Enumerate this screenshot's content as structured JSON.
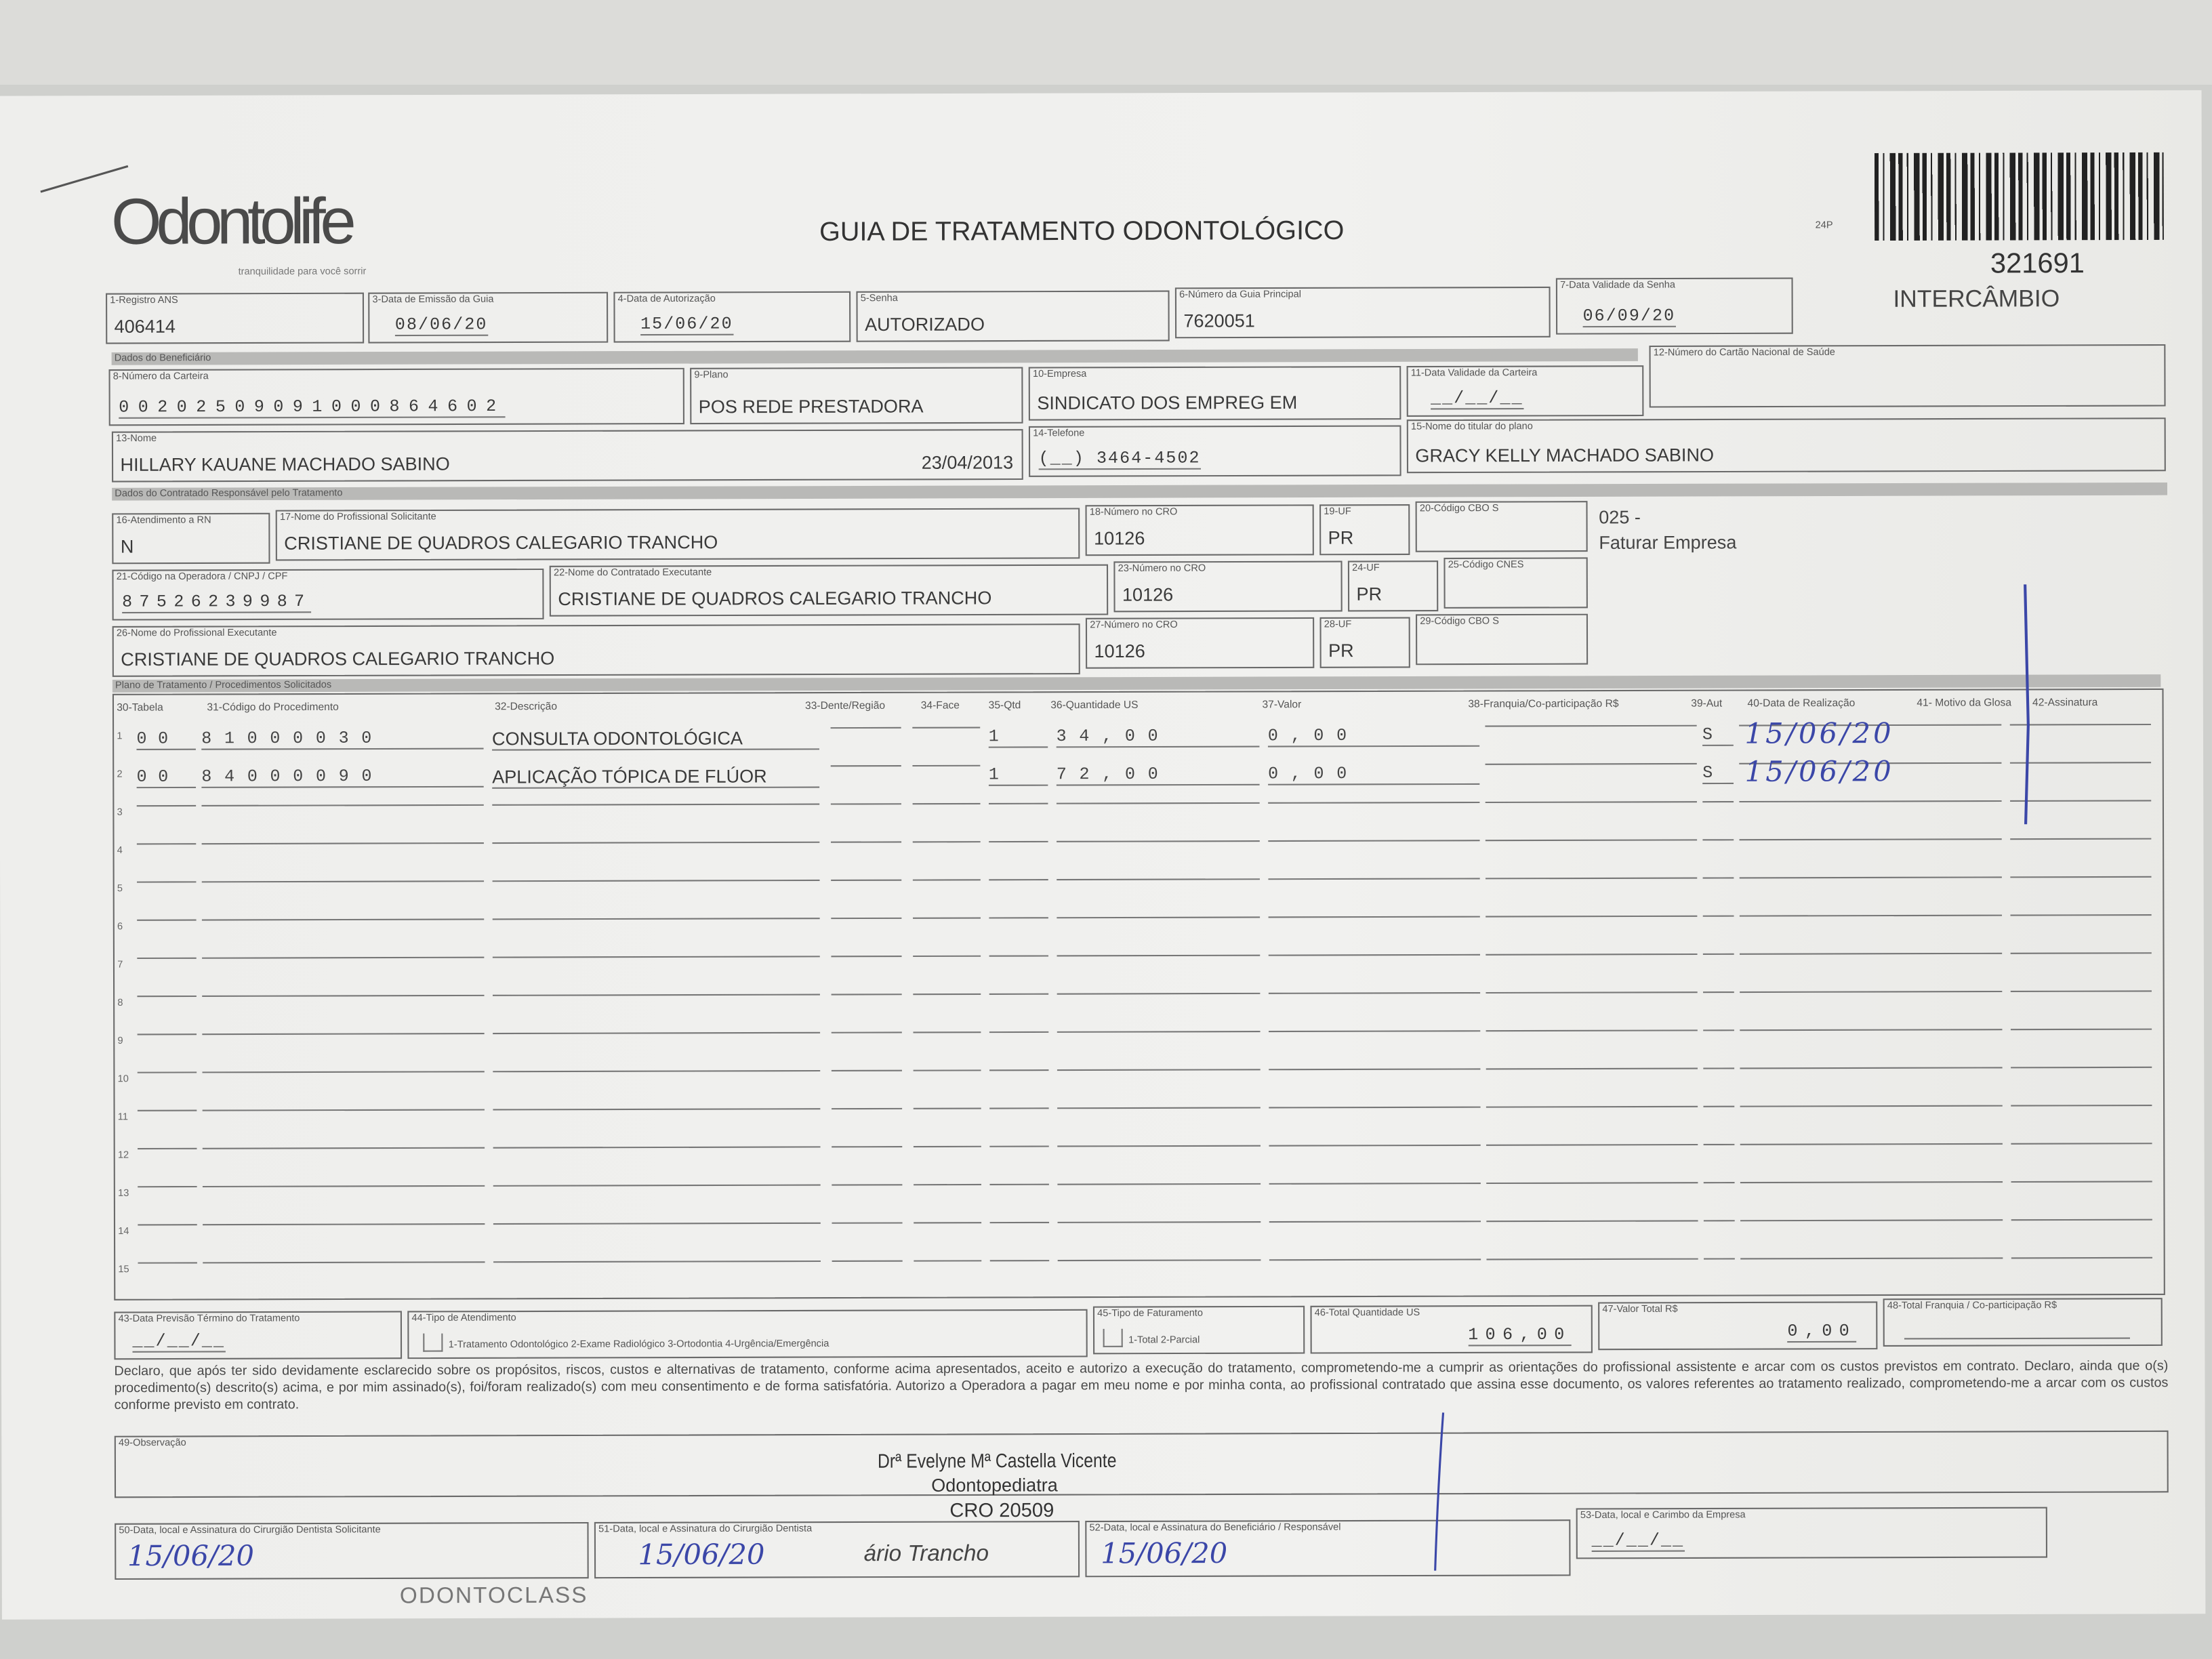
{
  "header": {
    "logo": "Odontolife",
    "tagline": "tranquilidade para você sorrir",
    "title": "GUIA DE TRATAMENTO ODONTOLÓGICO",
    "guide_number": "321691",
    "type": "INTERCÂMBIO",
    "small_mark": "24P"
  },
  "fields": {
    "registro_ans": {
      "label": "1-Registro ANS",
      "value": "406414"
    },
    "data_emissao": {
      "label": "3-Data de Emissão da Guia",
      "value": "08/06/20"
    },
    "data_autorizacao": {
      "label": "4-Data de Autorização",
      "value": "15/06/20"
    },
    "senha": {
      "label": "5-Senha",
      "value": "AUTORIZADO"
    },
    "guia_principal": {
      "label": "6-Número da Guia Principal",
      "value": "7620051"
    },
    "validade_senha": {
      "label": "7-Data Validade da Senha",
      "value": "06/09/20"
    },
    "carteira": {
      "label": "8-Número da Carteira",
      "value": "00202509091000864602"
    },
    "plano": {
      "label": "9-Plano",
      "value": "POS REDE PRESTADORA"
    },
    "empresa": {
      "label": "10-Empresa",
      "value": "SINDICATO DOS EMPREG EM"
    },
    "validade_carteira": {
      "label": "11-Data Validade da Carteira",
      "value": "__/__/__"
    },
    "cns": {
      "label": "12-Número do Cartão Nacional de Saúde",
      "value": ""
    },
    "nome": {
      "label": "13-Nome",
      "value": "HILLARY KAUANE MACHADO SABINO",
      "birth": "23/04/2013"
    },
    "telefone": {
      "label": "14-Telefone",
      "value": "(__) 3464-4502"
    },
    "titular": {
      "label": "15-Nome do titular do plano",
      "value": "GRACY KELLY MACHADO SABINO"
    },
    "atend_rn": {
      "label": "16-Atendimento a RN",
      "value": "N"
    },
    "prof_solicitante": {
      "label": "17-Nome do Profissional Solicitante",
      "value": "CRISTIANE DE QUADROS CALEGARIO TRANCHO"
    },
    "cro18": {
      "label": "18-Número no CRO",
      "value": "10126"
    },
    "uf19": {
      "label": "19-UF",
      "value": "PR"
    },
    "cbo20": {
      "label": "20-Código CBO S",
      "value": ""
    },
    "codigo_operadora": {
      "label": "21-Código na Operadora / CNPJ / CPF",
      "value": "87526239987"
    },
    "contratado": {
      "label": "22-Nome do Contratado Executante",
      "value": "CRISTIANE DE QUADROS CALEGARIO TRANCHO"
    },
    "cro23": {
      "label": "23-Número no CRO",
      "value": "10126"
    },
    "uf24": {
      "label": "24-UF",
      "value": "PR"
    },
    "cnes": {
      "label": "25-Código CNES",
      "value": ""
    },
    "prof_executante": {
      "label": "26-Nome do Profissional Executante",
      "value": "CRISTIANE DE QUADROS CALEGARIO TRANCHO"
    },
    "cro27": {
      "label": "27-Número no CRO",
      "value": "10126"
    },
    "uf28": {
      "label": "28-UF",
      "value": "PR"
    },
    "cbo29": {
      "label": "29-Código CBO S",
      "value": ""
    },
    "faturar": {
      "code": "025 -",
      "text": "Faturar Empresa"
    }
  },
  "sections": {
    "beneficiario": "Dados do Beneficiário",
    "contratado": "Dados do Contratado Responsável pelo Tratamento",
    "plano": "Plano de Tratamento / Procedimentos Solicitados"
  },
  "procedures": {
    "headers": [
      "30-Tabela",
      "31-Código do Procedimento",
      "32-Descrição",
      "33-Dente/Região",
      "34-Face",
      "35-Qtd",
      "36-Quantidade US",
      "37-Valor",
      "38-Franquia/Co-participação R$",
      "39-Aut",
      "40-Data de Realização",
      "41- Motivo da Glosa",
      "42-Assinatura"
    ],
    "rows": [
      {
        "n": "1",
        "tabela": "00",
        "codigo": "81000030",
        "descricao": "CONSULTA ODONTOLÓGICA",
        "qtd": "1",
        "us": "34,00",
        "valor": "0,00",
        "aut": "S",
        "data": "15/06/20"
      },
      {
        "n": "2",
        "tabela": "00",
        "codigo": "84000090",
        "descricao": "APLICAÇÃO TÓPICA DE FLÚOR",
        "qtd": "1",
        "us": "72,00",
        "valor": "0,00",
        "aut": "S",
        "data": "15/06/20"
      }
    ],
    "empty_rows": [
      "3",
      "4",
      "5",
      "6",
      "7",
      "8",
      "9",
      "10",
      "11",
      "12",
      "13",
      "14",
      "15"
    ]
  },
  "totals": {
    "previsao": {
      "label": "43-Data Previsão Término do Tratamento",
      "value": "__/__/__"
    },
    "tipo_atendimento": {
      "label": "44-Tipo de Atendimento",
      "options": "1-Tratamento Odontológico  2-Exame Radiológico  3-Ortodontia  4-Urgência/Emergência"
    },
    "tipo_faturamento": {
      "label": "45-Tipo de Faturamento",
      "options": "1-Total  2-Parcial"
    },
    "total_us": {
      "label": "46-Total Quantidade US",
      "value": "106,00"
    },
    "valor_total": {
      "label": "47-Valor Total R$",
      "value": "0,00"
    },
    "total_franquia": {
      "label": "48-Total Franquia / Co-participação R$",
      "value": ""
    }
  },
  "declaration": "Declaro, que após ter sido devidamente esclarecido sobre os propósitos, riscos, custos e alternativas de tratamento, conforme acima apresentados, aceito e autorizo a execução do tratamento, comprometendo-me a cumprir as orientações do profissional assistente e arcar com os custos previstos em contrato. Declaro, ainda que o(s) procedimento(s) descrito(s) acima, e por mim assinado(s), foi/foram realizado(s) com meu consentimento e de forma satisfatória. Autorizo a Operadora a pagar em meu nome e por minha conta, ao profissional contratado que assina esse documento, os valores referentes ao tratamento realizado, comprometendo-me a arcar com os custos conforme previsto em contrato.",
  "observacao": {
    "label": "49-Observação",
    "stamp_name": "Drª Evelyne Mª Castella Vicente",
    "stamp_role": "Odontopediatra",
    "stamp_cro": "CRO 20509"
  },
  "signatures": {
    "s50": {
      "label": "50-Data, local e Assinatura do Cirurgião Dentista Solicitante",
      "value": "15/06/20"
    },
    "s51": {
      "label": "51-Data, local e Assinatura do Cirurgião Dentista",
      "value": "15/06/20",
      "stamp": "ário Trancho"
    },
    "s52": {
      "label": "52-Data, local e Assinatura do Beneficiário / Responsável",
      "value": "15/06/20"
    },
    "s53": {
      "label": "53-Data, local e Carimbo da Empresa",
      "value": "__/__/__"
    },
    "stamp_text": "ODONTOCLASS"
  },
  "colors": {
    "ink": "#3b47a8",
    "print": "#3a3a3a",
    "band": "#b9b9b7"
  }
}
